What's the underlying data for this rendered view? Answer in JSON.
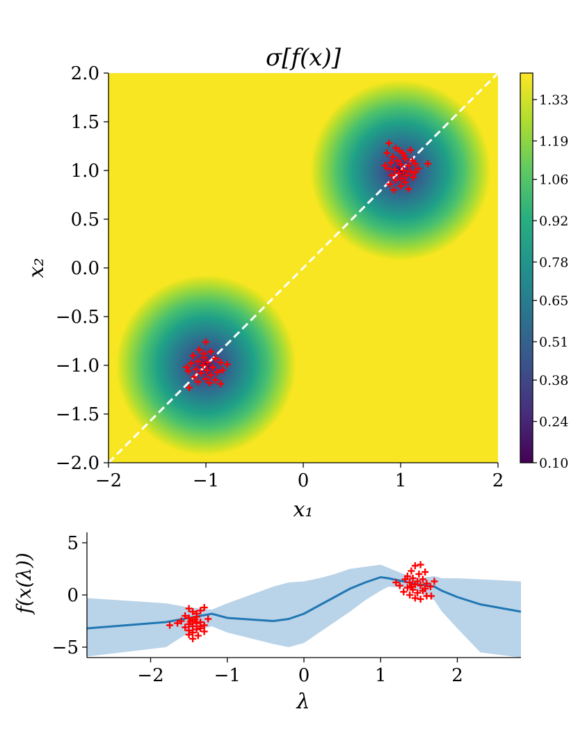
{
  "chart_data": [
    {
      "type": "heatmap",
      "title": "σ[f(x)]",
      "xlabel": "x₁",
      "ylabel": "x₂",
      "xlim": [
        -2.0,
        2.0
      ],
      "ylim": [
        -2.0,
        2.0
      ],
      "xticks": [
        "−2",
        "−1",
        "0",
        "1",
        "2"
      ],
      "xtick_values": [
        -2,
        -1,
        0,
        1,
        2
      ],
      "yticks": [
        "2.0",
        "1.5",
        "1.0",
        "0.5",
        "0.0",
        "−0.5",
        "−1.0",
        "−1.5",
        "−2.0"
      ],
      "ytick_values": [
        2.0,
        1.5,
        1.0,
        0.5,
        0.0,
        -0.5,
        -1.0,
        -1.5,
        -2.0
      ],
      "colormap": "viridis",
      "colorbar_ticks": [
        "1.33",
        "1.19",
        "1.06",
        "0.92",
        "0.78",
        "0.65",
        "0.51",
        "0.38",
        "0.24",
        "0.10"
      ],
      "colorbar_values": [
        1.33,
        1.19,
        1.06,
        0.92,
        0.78,
        0.65,
        0.51,
        0.38,
        0.24,
        0.1
      ],
      "colorbar_range": [
        0.1,
        1.42
      ],
      "clusters": [
        {
          "center": [
            1.0,
            1.0
          ],
          "min_sigma": 0.1
        },
        {
          "center": [
            -1.0,
            -1.0
          ],
          "min_sigma": 0.1
        }
      ],
      "diagonal_line": {
        "from": [
          -2,
          -2
        ],
        "to": [
          2,
          2
        ],
        "color": "#ffffff",
        "style": "dashed"
      },
      "marker_color": "#ff0000",
      "points_cluster_1": [
        [
          0.88,
          1.28
        ],
        [
          0.95,
          1.23
        ],
        [
          1.02,
          1.18
        ],
        [
          1.1,
          1.21
        ],
        [
          0.86,
          1.18
        ],
        [
          0.92,
          1.14
        ],
        [
          1.05,
          1.12
        ],
        [
          1.12,
          1.1
        ],
        [
          0.97,
          1.1
        ],
        [
          0.9,
          1.08
        ],
        [
          1.0,
          1.06
        ],
        [
          1.08,
          1.05
        ],
        [
          1.15,
          1.07
        ],
        [
          1.28,
          1.07
        ],
        [
          0.87,
          1.02
        ],
        [
          0.94,
          1.01
        ],
        [
          1.03,
          1.0
        ],
        [
          1.1,
          0.99
        ],
        [
          0.98,
          0.97
        ],
        [
          1.06,
          0.95
        ],
        [
          0.91,
          0.95
        ],
        [
          1.01,
          0.92
        ],
        [
          1.13,
          0.93
        ],
        [
          0.95,
          0.9
        ],
        [
          1.05,
          0.88
        ],
        [
          0.89,
          0.86
        ],
        [
          1.0,
          0.84
        ],
        [
          1.08,
          0.81
        ],
        [
          0.93,
          0.8
        ],
        [
          1.15,
          0.98
        ],
        [
          1.18,
          1.02
        ],
        [
          0.84,
          1.05
        ],
        [
          1.04,
          1.15
        ],
        [
          0.99,
          1.2
        ]
      ],
      "points_cluster_2": [
        [
          -1.0,
          -0.76
        ],
        [
          -1.07,
          -0.84
        ],
        [
          -0.95,
          -0.86
        ],
        [
          -1.13,
          -0.9
        ],
        [
          -1.02,
          -0.92
        ],
        [
          -0.9,
          -0.93
        ],
        [
          -1.08,
          -0.96
        ],
        [
          -0.98,
          -0.97
        ],
        [
          -1.15,
          -0.98
        ],
        [
          -0.85,
          -0.97
        ],
        [
          -0.78,
          -0.99
        ],
        [
          -1.03,
          -1.0
        ],
        [
          -0.93,
          -1.02
        ],
        [
          -1.1,
          -1.04
        ],
        [
          -0.99,
          -1.05
        ],
        [
          -1.18,
          -1.06
        ],
        [
          -0.88,
          -1.07
        ],
        [
          -1.05,
          -1.08
        ],
        [
          -0.95,
          -1.1
        ],
        [
          -1.12,
          -1.12
        ],
        [
          -1.0,
          -1.14
        ],
        [
          -0.9,
          -1.15
        ],
        [
          -1.08,
          -1.17
        ],
        [
          -0.96,
          -1.18
        ],
        [
          -1.17,
          -1.23
        ],
        [
          -0.85,
          -1.19
        ],
        [
          -0.83,
          -1.05
        ],
        [
          -1.2,
          -1.02
        ],
        [
          -1.02,
          -0.88
        ]
      ]
    },
    {
      "type": "line",
      "title": "",
      "xlabel": "λ",
      "ylabel": "f(x(λ))",
      "xlim": [
        -2.83,
        2.83
      ],
      "ylim": [
        -6.0,
        6.0
      ],
      "xticks": [
        "−2",
        "−1",
        "0",
        "1",
        "2"
      ],
      "xtick_values": [
        -2,
        -1,
        0,
        1,
        2
      ],
      "yticks": [
        "5",
        "0",
        "−5"
      ],
      "ytick_values": [
        5,
        0,
        -5
      ],
      "mean_color": "#1f77b4",
      "band_color": "#b9d3e8",
      "x": [
        -2.83,
        -1.8,
        -1.5,
        -1.2,
        -1.0,
        -0.4,
        -0.2,
        0.0,
        0.2,
        0.4,
        0.6,
        0.8,
        1.0,
        1.1,
        1.3,
        1.5,
        1.7,
        1.8,
        2.0,
        2.3,
        2.83
      ],
      "mean": [
        -3.2,
        -2.6,
        -2.2,
        -1.8,
        -2.2,
        -2.5,
        -2.3,
        -1.8,
        -1.0,
        -0.2,
        0.6,
        1.2,
        1.7,
        1.6,
        1.3,
        1.0,
        0.8,
        0.4,
        -0.2,
        -0.9,
        -1.6
      ],
      "upper": [
        -0.3,
        -0.8,
        -1.2,
        -1.4,
        -0.8,
        0.8,
        1.2,
        1.3,
        1.6,
        2.0,
        2.5,
        2.7,
        2.9,
        2.6,
        2.0,
        1.6,
        1.8,
        1.6,
        1.6,
        1.5,
        1.3
      ],
      "lower": [
        -5.9,
        -5.0,
        -3.6,
        -3.0,
        -3.6,
        -4.7,
        -5.0,
        -4.6,
        -3.6,
        -2.6,
        -1.6,
        -0.5,
        0.4,
        0.8,
        0.7,
        0.3,
        -0.5,
        -1.6,
        -3.2,
        -5.5,
        -6.0
      ],
      "points": [
        [
          -1.5,
          -1.3
        ],
        [
          -1.45,
          -1.6
        ],
        [
          -1.4,
          -1.8
        ],
        [
          -1.35,
          -1.5
        ],
        [
          -1.3,
          -1.2
        ],
        [
          -1.55,
          -2.0
        ],
        [
          -1.5,
          -2.2
        ],
        [
          -1.45,
          -2.4
        ],
        [
          -1.4,
          -2.1
        ],
        [
          -1.35,
          -2.6
        ],
        [
          -1.6,
          -2.5
        ],
        [
          -1.5,
          -2.8
        ],
        [
          -1.45,
          -3.0
        ],
        [
          -1.4,
          -2.7
        ],
        [
          -1.35,
          -3.2
        ],
        [
          -1.3,
          -2.9
        ],
        [
          -1.55,
          -3.1
        ],
        [
          -1.5,
          -3.4
        ],
        [
          -1.45,
          -3.6
        ],
        [
          -1.4,
          -3.3
        ],
        [
          -1.35,
          -3.0
        ],
        [
          -1.3,
          -3.5
        ],
        [
          -1.5,
          -3.8
        ],
        [
          -1.45,
          -4.2
        ],
        [
          -1.38,
          -3.9
        ],
        [
          -1.65,
          -2.7
        ],
        [
          -1.75,
          -2.9
        ],
        [
          -1.25,
          -2.3
        ],
        [
          -1.48,
          -2.55
        ],
        [
          -1.42,
          -2.35
        ],
        [
          1.45,
          2.8
        ],
        [
          1.52,
          2.9
        ],
        [
          1.4,
          2.3
        ],
        [
          1.5,
          2.0
        ],
        [
          1.58,
          2.2
        ],
        [
          1.35,
          1.8
        ],
        [
          1.42,
          1.6
        ],
        [
          1.55,
          1.5
        ],
        [
          1.48,
          1.3
        ],
        [
          1.38,
          1.2
        ],
        [
          1.6,
          1.1
        ],
        [
          1.45,
          1.0
        ],
        [
          1.52,
          0.9
        ],
        [
          1.35,
          0.7
        ],
        [
          1.42,
          0.5
        ],
        [
          1.55,
          0.4
        ],
        [
          1.48,
          0.2
        ],
        [
          1.38,
          0.0
        ],
        [
          1.6,
          -0.1
        ],
        [
          1.45,
          -0.3
        ],
        [
          1.52,
          -0.4
        ],
        [
          1.25,
          0.9
        ],
        [
          1.2,
          1.2
        ],
        [
          1.3,
          0.3
        ],
        [
          1.66,
          -0.1
        ],
        [
          1.65,
          0.8
        ],
        [
          1.7,
          1.3
        ],
        [
          1.32,
          1.5
        ],
        [
          1.58,
          0.6
        ],
        [
          1.4,
          0.8
        ]
      ]
    }
  ]
}
